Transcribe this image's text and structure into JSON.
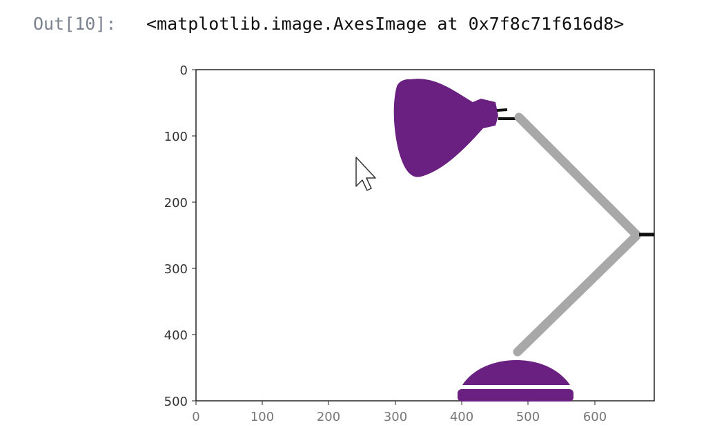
{
  "output": {
    "prompt": "Out[10]:",
    "text": "<matplotlib.image.AxesImage at 0x7f8c71f616d8>"
  },
  "chart_data": {
    "type": "image",
    "xlim": [
      0,
      690
    ],
    "ylim": [
      500,
      0
    ],
    "x_ticks": [
      "0",
      "100",
      "200",
      "300",
      "400",
      "500",
      "600"
    ],
    "y_ticks": [
      "0",
      "100",
      "200",
      "300",
      "400",
      "500"
    ],
    "image_content": "purple desk lamp with grey arm",
    "colors": {
      "lamp": "#6a2080",
      "arm": "#a8a8a8",
      "joint": "#111111",
      "frame": "#222222"
    }
  }
}
